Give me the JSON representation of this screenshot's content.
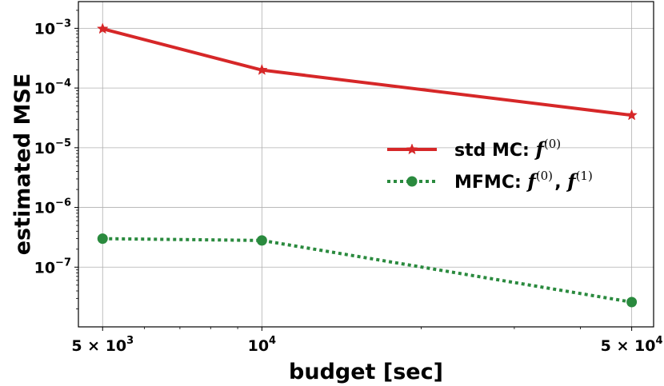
{
  "chart_data": {
    "type": "line",
    "xlabel": "budget [sec]",
    "ylabel": "estimated MSE",
    "xscale": "log",
    "yscale": "log",
    "xlim": [
      4500,
      55000
    ],
    "ylim": [
      1e-08,
      0.0028
    ],
    "grid": true,
    "legend_position": "center-right",
    "x_ticks": [
      {
        "value": 5000,
        "mantissa": "5 × ",
        "base": "10",
        "exp": "3"
      },
      {
        "value": 10000,
        "mantissa": "",
        "base": "10",
        "exp": "4"
      },
      {
        "value": 50000,
        "mantissa": "5 × ",
        "base": "10",
        "exp": "4"
      }
    ],
    "y_ticks": [
      {
        "value": 0.001,
        "base": "10",
        "exp": "−3"
      },
      {
        "value": 0.0001,
        "base": "10",
        "exp": "−4"
      },
      {
        "value": 1e-05,
        "base": "10",
        "exp": "−5"
      },
      {
        "value": 1e-06,
        "base": "10",
        "exp": "−6"
      },
      {
        "value": 1e-07,
        "base": "10",
        "exp": "−7"
      }
    ],
    "series": [
      {
        "name": "std MC: f(0)",
        "legend_text": "std MC: ",
        "legend_math": [
          {
            "f": "f",
            "sup": "(0)"
          }
        ],
        "color": "#d62728",
        "line_style": "solid",
        "marker": "star",
        "x": [
          5000,
          10000,
          50000
        ],
        "values": [
          0.00098,
          0.0002,
          3.5e-05
        ]
      },
      {
        "name": "MFMC: f(0), f(1)",
        "legend_text": "MFMC: ",
        "legend_math": [
          {
            "f": "f",
            "sup": "(0)"
          },
          {
            "f": "f",
            "sup": "(1)"
          }
        ],
        "color": "#2a8a3e",
        "line_style": "dotted",
        "marker": "circle",
        "x": [
          5000,
          10000,
          50000
        ],
        "values": [
          3e-07,
          2.8e-07,
          2.6e-08
        ]
      }
    ]
  }
}
